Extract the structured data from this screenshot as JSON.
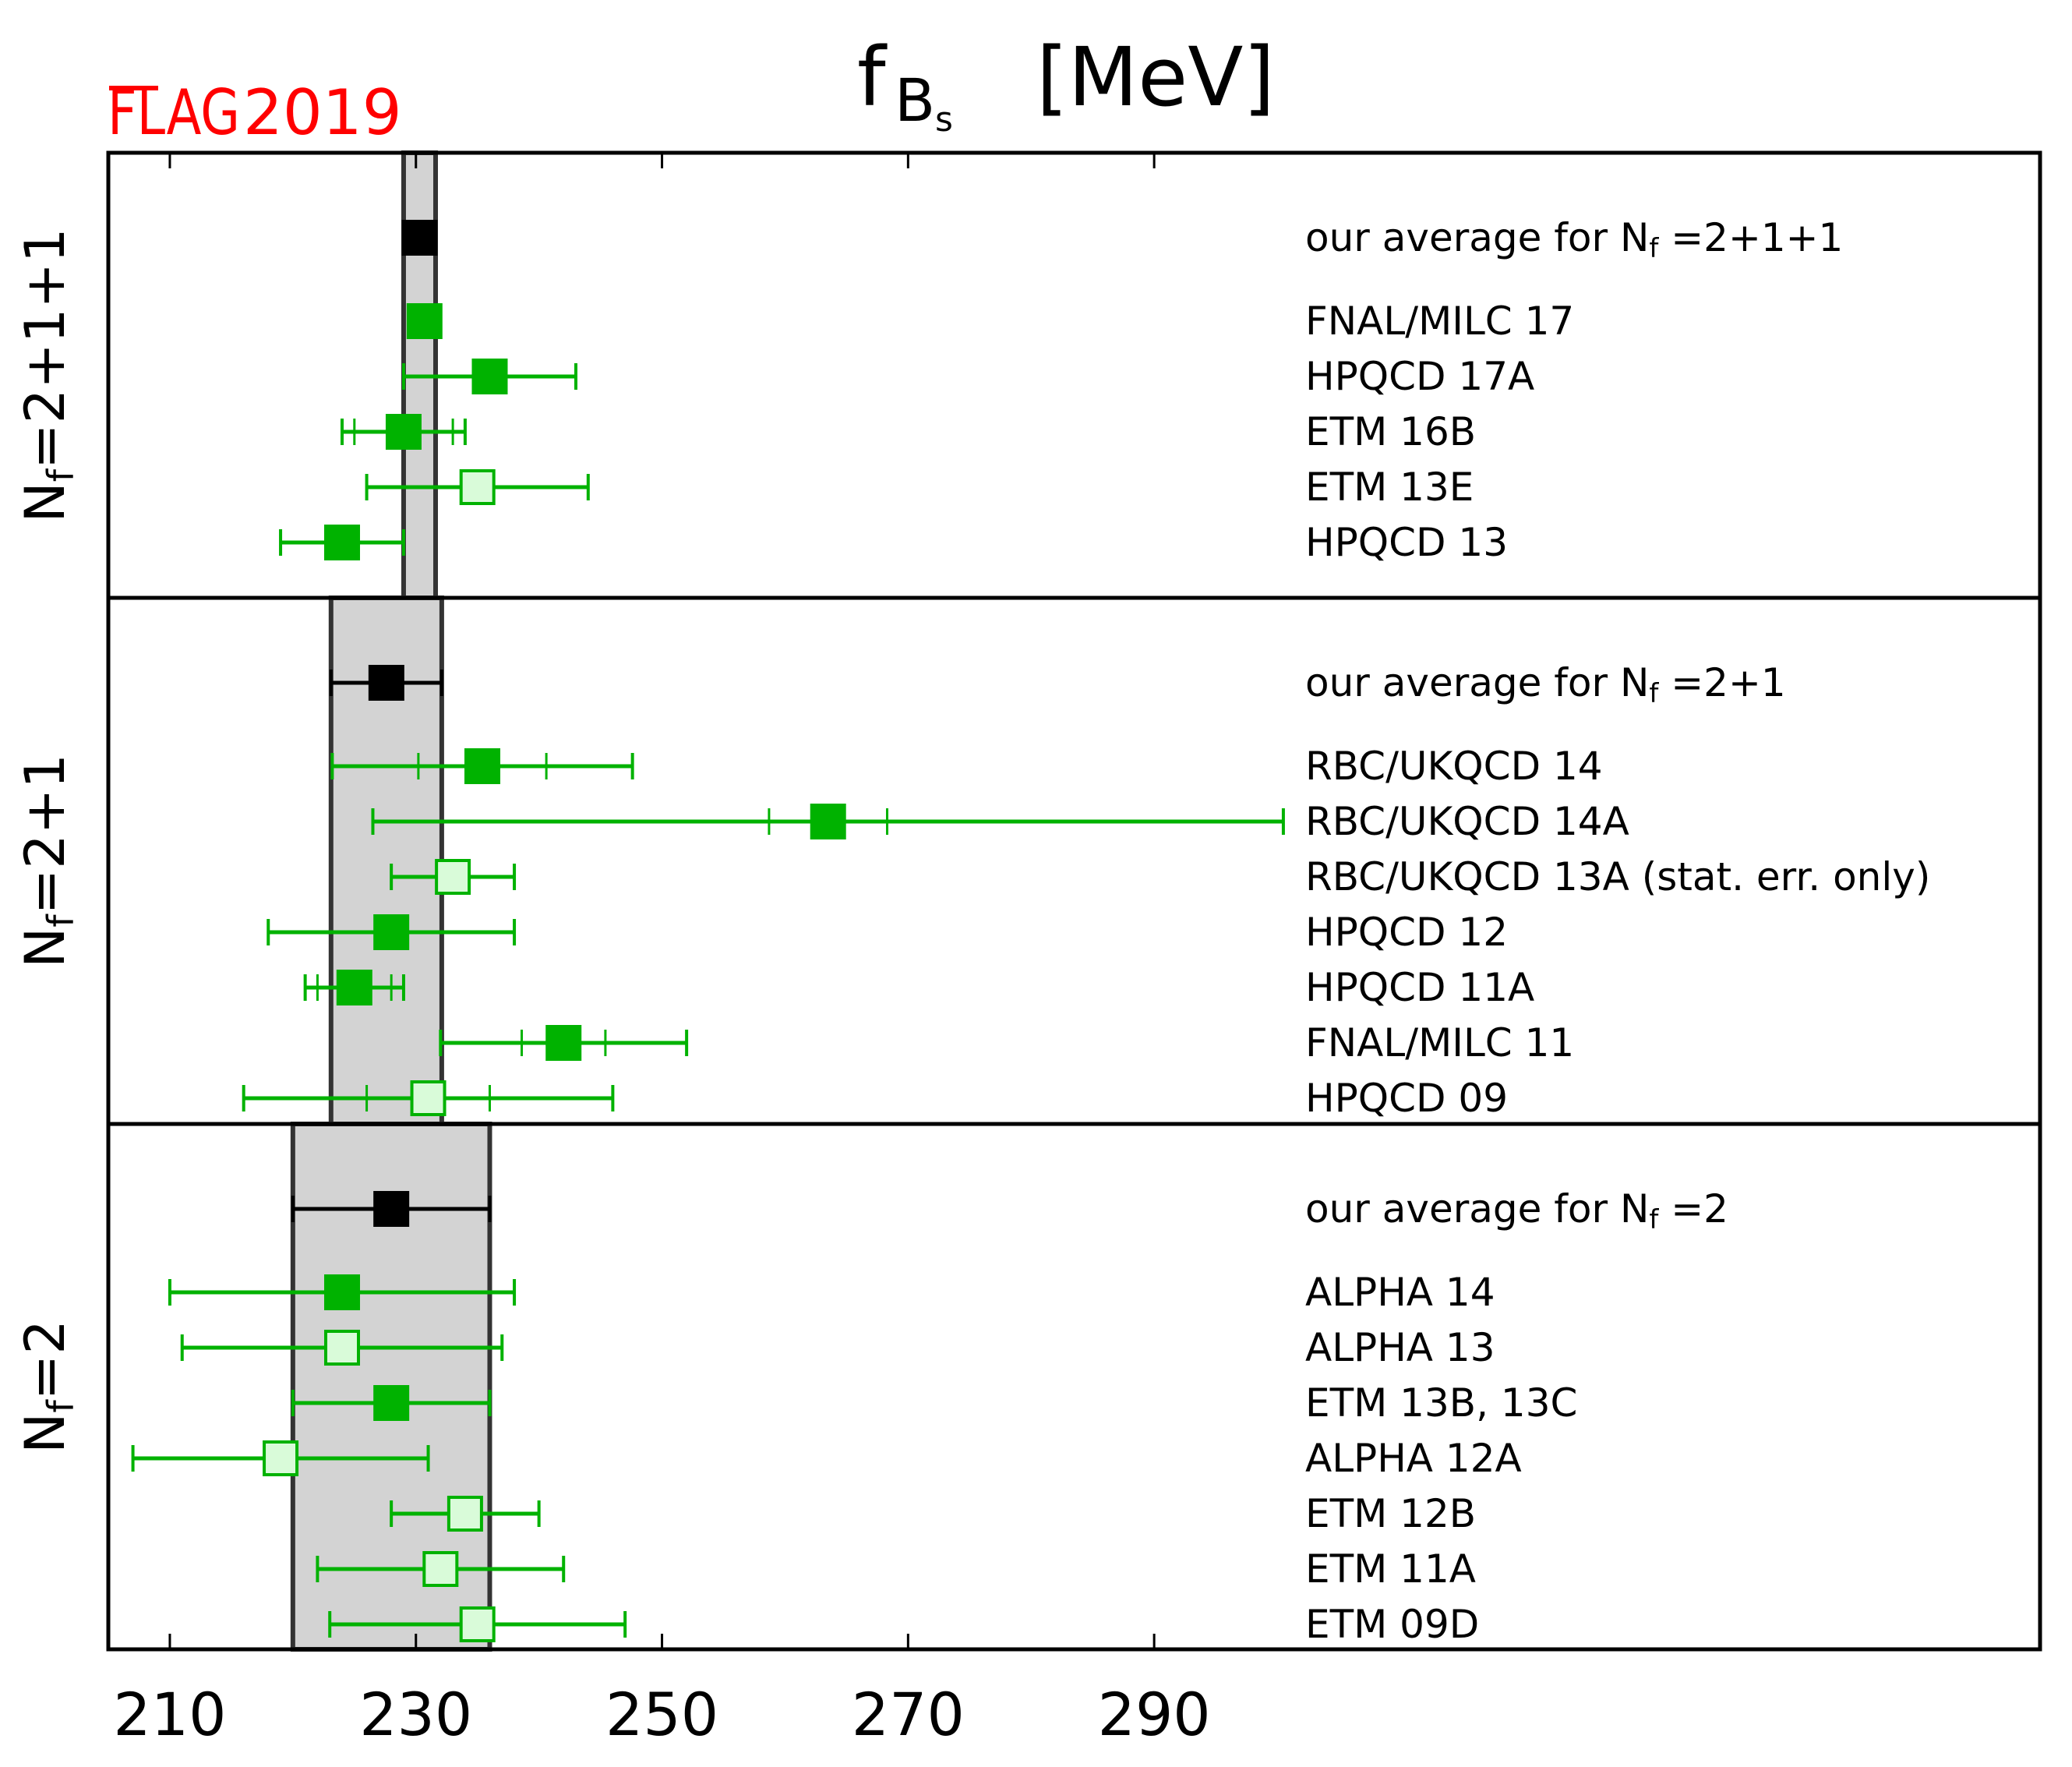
{
  "logo": {
    "prefix": "FLAG",
    "year": "2019",
    "color": "#ff0000"
  },
  "chart_data": {
    "type": "scatter",
    "title": "f_Bs [MeV]",
    "title_parts": {
      "symbol": "f",
      "sub": "B",
      "subsub": "s",
      "unit": "[MeV]"
    },
    "xlabel": "",
    "ylabel": "",
    "xlim": [
      205,
      362
    ],
    "xticks": [
      210,
      230,
      250,
      270,
      290
    ],
    "grid": false,
    "colors": {
      "average": "#000000",
      "filled": "#00b200",
      "open_fill": "#d9fbd9",
      "open_edge": "#00b200",
      "band_fill": "#d3d3d3",
      "band_edge": "#333333"
    },
    "panels": [
      {
        "label": "N_f = 2+1+1",
        "label_parts": {
          "n": "N",
          "sub": "f",
          "rest": "=2+1+1"
        },
        "average": {
          "label": "our average for N_f = 2+1+1",
          "label_parts": {
            "pre": "our average for N",
            "sub": "f",
            "post": " =2+1+1"
          },
          "value": 230.3,
          "err": 1.3,
          "show_errbar": false
        },
        "points": [
          {
            "label": "FNAL/MILC 17",
            "value": 230.7,
            "err_total": 1.2,
            "err_inner": null,
            "style": "filled"
          },
          {
            "label": "HPQCD 17A",
            "value": 236.0,
            "err_total": 7.0,
            "err_inner": null,
            "style": "filled"
          },
          {
            "label": "ETM 16B",
            "value": 229.0,
            "err_total": 5.0,
            "err_inner": 4.0,
            "style": "filled"
          },
          {
            "label": "ETM 13E",
            "value": 235.0,
            "err_total": 9.0,
            "err_inner": null,
            "style": "open"
          },
          {
            "label": "HPQCD 13",
            "value": 224.0,
            "err_total": 5.0,
            "err_inner": null,
            "style": "filled"
          }
        ]
      },
      {
        "label": "N_f = 2+1",
        "label_parts": {
          "n": "N",
          "sub": "f",
          "rest": "=2+1"
        },
        "average": {
          "label": "our average for N_f = 2+1",
          "label_parts": {
            "pre": "our average for N",
            "sub": "f",
            "post": " =2+1"
          },
          "value": 227.6,
          "err": 4.5,
          "show_errbar": true
        },
        "points": [
          {
            "label": "RBC/UKQCD 14",
            "value": 235.4,
            "err_total": 12.2,
            "err_inner": 5.2,
            "style": "filled"
          },
          {
            "label": "RBC/UKQCD 14A",
            "value": 263.5,
            "err_total": 37.0,
            "err_inner": 4.8,
            "style": "filled"
          },
          {
            "label": "RBC/UKQCD 13A (stat. err. only)",
            "value": 233.0,
            "err_total": 5.0,
            "err_inner": null,
            "style": "open"
          },
          {
            "label": "HPQCD 12",
            "value": 228.0,
            "err_total": 10.0,
            "err_inner": null,
            "style": "filled"
          },
          {
            "label": "HPQCD 11A",
            "value": 225.0,
            "err_total": 4.0,
            "err_inner": 3.0,
            "style": "filled"
          },
          {
            "label": "FNAL/MILC 11",
            "value": 242.0,
            "err_total": 10.0,
            "err_inner": 3.4,
            "style": "filled"
          },
          {
            "label": "HPQCD 09",
            "value": 231.0,
            "err_total": 15.0,
            "err_inner": 5.0,
            "style": "open"
          }
        ]
      },
      {
        "label": "N_f = 2",
        "label_parts": {
          "n": "N",
          "sub": "f",
          "rest": "=2"
        },
        "average": {
          "label": "our average for N_f = 2",
          "label_parts": {
            "pre": "our average for N",
            "sub": "f",
            "post": " =2"
          },
          "value": 228.0,
          "err": 8.0,
          "show_errbar": true
        },
        "points": [
          {
            "label": "ALPHA 14",
            "value": 224.0,
            "err_total": 14.0,
            "err_inner": null,
            "style": "filled"
          },
          {
            "label": "ALPHA 13",
            "value": 224.0,
            "err_total": 13.0,
            "err_inner": null,
            "style": "open"
          },
          {
            "label": "ETM 13B, 13C",
            "value": 228.0,
            "err_total": 8.0,
            "err_inner": null,
            "style": "filled"
          },
          {
            "label": "ALPHA 12A",
            "value": 219.0,
            "err_total": 12.0,
            "err_inner": null,
            "style": "open"
          },
          {
            "label": "ETM 12B",
            "value": 234.0,
            "err_total": 6.0,
            "err_inner": null,
            "style": "open"
          },
          {
            "label": "ETM 11A",
            "value": 232.0,
            "err_total": 10.0,
            "err_inner": null,
            "style": "open"
          },
          {
            "label": "ETM 09D",
            "value": 235.0,
            "err_total": 12.0,
            "err_inner": null,
            "style": "open"
          }
        ]
      }
    ]
  }
}
